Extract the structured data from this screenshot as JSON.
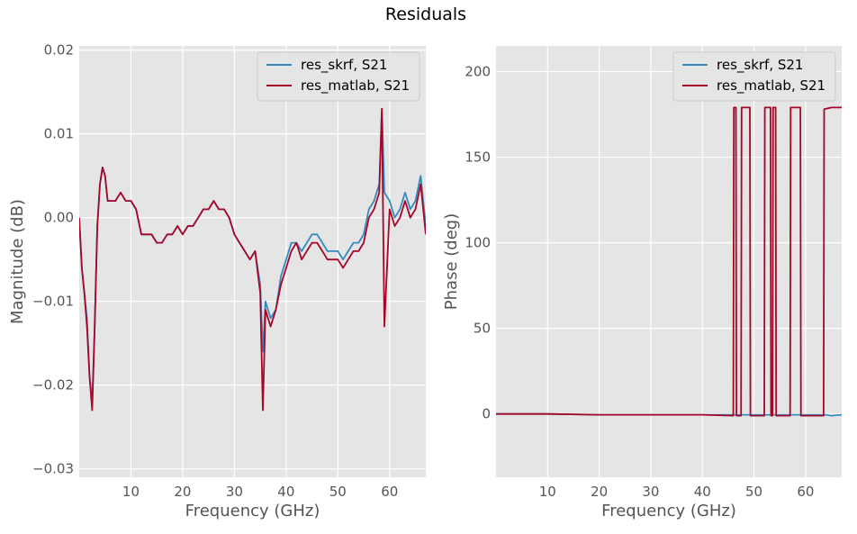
{
  "figure": {
    "title": "Residuals"
  },
  "colors": {
    "res_skrf": "#348ABD",
    "res_matlab": "#A60628",
    "axes_bg": "#E5E5E5",
    "grid": "#FFFFFF"
  },
  "chart_data": [
    {
      "type": "line",
      "title": "",
      "xlabel": "Frequency (GHz)",
      "ylabel": "Magnitude (dB)",
      "xlim": [
        0,
        67
      ],
      "ylim": [
        -0.031,
        0.0205
      ],
      "xticks": [
        10,
        20,
        30,
        40,
        50,
        60
      ],
      "xtick_labels": [
        "10",
        "20",
        "30",
        "40",
        "50",
        "60"
      ],
      "yticks": [
        -0.03,
        -0.02,
        -0.01,
        0.0,
        0.01,
        0.02
      ],
      "ytick_labels": [
        "−0.03",
        "−0.02",
        "−0.01",
        "0.00",
        "0.01",
        "0.02"
      ],
      "grid": true,
      "legend_position": "top-right",
      "series": [
        {
          "name": "res_skrf, S21",
          "x": [
            0,
            0.5,
            1,
            1.5,
            2,
            2.5,
            3,
            3.5,
            4,
            4.5,
            5,
            5.5,
            6,
            7,
            8,
            9,
            10,
            11,
            12,
            13,
            14,
            15,
            16,
            17,
            18,
            19,
            20,
            21,
            22,
            23,
            24,
            25,
            26,
            27,
            28,
            29,
            30,
            31,
            32,
            33,
            34,
            35,
            35.5,
            36,
            36.5,
            37,
            38,
            39,
            40,
            41,
            42,
            43,
            44,
            45,
            46,
            47,
            48,
            49,
            50,
            51,
            52,
            53,
            54,
            55,
            56,
            57,
            58,
            58.5,
            59,
            60,
            61,
            62,
            63,
            64,
            65,
            66,
            67
          ],
          "y": [
            0.0,
            -0.006,
            -0.009,
            -0.012,
            -0.019,
            -0.022,
            -0.013,
            -0.001,
            0.004,
            0.006,
            0.005,
            0.002,
            0.002,
            0.002,
            0.003,
            0.002,
            0.002,
            0.001,
            -0.002,
            -0.002,
            -0.002,
            -0.003,
            -0.003,
            -0.002,
            -0.002,
            -0.001,
            -0.002,
            -0.001,
            -0.001,
            0.0,
            0.001,
            0.001,
            0.002,
            0.001,
            0.001,
            0.0,
            -0.002,
            -0.003,
            -0.004,
            -0.005,
            -0.004,
            -0.008,
            -0.016,
            -0.01,
            -0.011,
            -0.012,
            -0.011,
            -0.007,
            -0.005,
            -0.003,
            -0.003,
            -0.004,
            -0.003,
            -0.002,
            -0.002,
            -0.003,
            -0.004,
            -0.004,
            -0.004,
            -0.005,
            -0.004,
            -0.003,
            -0.003,
            -0.002,
            0.001,
            0.002,
            0.004,
            0.013,
            0.003,
            0.002,
            0.0,
            0.001,
            0.003,
            0.001,
            0.002,
            0.005,
            -0.001
          ]
        },
        {
          "name": "res_matlab, S21",
          "x": [
            0,
            0.5,
            1,
            1.5,
            2,
            2.5,
            3,
            3.5,
            4,
            4.5,
            5,
            5.5,
            6,
            7,
            8,
            9,
            10,
            11,
            12,
            13,
            14,
            15,
            16,
            17,
            18,
            19,
            20,
            21,
            22,
            23,
            24,
            25,
            26,
            27,
            28,
            29,
            30,
            31,
            32,
            33,
            34,
            35,
            35.5,
            36,
            36.5,
            37,
            38,
            39,
            40,
            41,
            42,
            43,
            44,
            45,
            46,
            47,
            48,
            49,
            50,
            51,
            52,
            53,
            54,
            55,
            56,
            57,
            58,
            58.5,
            59,
            60,
            61,
            62,
            63,
            64,
            65,
            66,
            67
          ],
          "y": [
            0.0,
            -0.006,
            -0.009,
            -0.013,
            -0.019,
            -0.023,
            -0.013,
            -0.001,
            0.004,
            0.006,
            0.005,
            0.002,
            0.002,
            0.002,
            0.003,
            0.002,
            0.002,
            0.001,
            -0.002,
            -0.002,
            -0.002,
            -0.003,
            -0.003,
            -0.002,
            -0.002,
            -0.001,
            -0.002,
            -0.001,
            -0.001,
            0.0,
            0.001,
            0.001,
            0.002,
            0.001,
            0.001,
            0.0,
            -0.002,
            -0.003,
            -0.004,
            -0.005,
            -0.004,
            -0.009,
            -0.023,
            -0.011,
            -0.012,
            -0.013,
            -0.011,
            -0.008,
            -0.006,
            -0.004,
            -0.003,
            -0.005,
            -0.004,
            -0.003,
            -0.003,
            -0.004,
            -0.005,
            -0.005,
            -0.005,
            -0.006,
            -0.005,
            -0.004,
            -0.004,
            -0.003,
            0.0,
            0.001,
            0.003,
            0.013,
            -0.013,
            0.001,
            -0.001,
            0.0,
            0.002,
            0.0,
            0.001,
            0.004,
            -0.002
          ]
        }
      ]
    },
    {
      "type": "line",
      "title": "",
      "xlabel": "Frequency (GHz)",
      "ylabel": "Phase (deg)",
      "xlim": [
        0,
        67
      ],
      "ylim": [
        -37,
        215
      ],
      "xticks": [
        10,
        20,
        30,
        40,
        50,
        60
      ],
      "xtick_labels": [
        "10",
        "20",
        "30",
        "40",
        "50",
        "60"
      ],
      "yticks": [
        0,
        50,
        100,
        150,
        200
      ],
      "ytick_labels": [
        "0",
        "50",
        "100",
        "150",
        "200"
      ],
      "grid": true,
      "legend_position": "top-right",
      "series": [
        {
          "name": "res_skrf, S21",
          "x": [
            0,
            10,
            20,
            30,
            40,
            45,
            50,
            55,
            60,
            64,
            65,
            67
          ],
          "y": [
            0,
            0,
            -0.5,
            -0.5,
            -0.5,
            -0.5,
            -0.5,
            -0.5,
            -0.5,
            -0.5,
            -1,
            -0.5
          ]
        },
        {
          "name": "res_matlab, S21",
          "x": [
            0,
            10,
            20,
            30,
            40,
            46,
            46.1,
            46.5,
            46.6,
            47.5,
            47.6,
            49.2,
            49.3,
            52,
            52.1,
            53.2,
            53.3,
            53.6,
            53.7,
            54.2,
            54.3,
            57,
            57.1,
            59,
            59.1,
            63.5,
            63.6,
            65,
            67
          ],
          "y": [
            0,
            0,
            -0.5,
            -0.5,
            -0.5,
            -1,
            179,
            179,
            -1,
            -1,
            179,
            179,
            -1,
            -1,
            179,
            179,
            -1,
            -1,
            179,
            179,
            -1,
            -1,
            179,
            179,
            -1,
            -1,
            178,
            179,
            179
          ]
        }
      ]
    }
  ]
}
